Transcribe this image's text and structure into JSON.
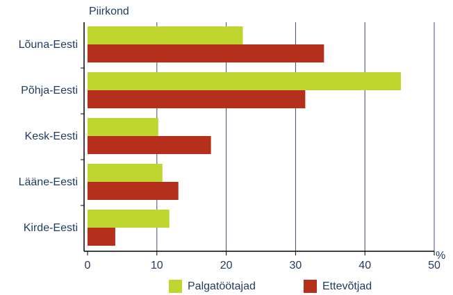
{
  "chart_data": {
    "type": "hbar",
    "y_label": "Piirkond",
    "x_label": "%",
    "categories": [
      "Lõuna-Eesti",
      "Põhja-Eesti",
      "Kesk-Eesti",
      "Lääne-Eesti",
      "Kirde-Eesti"
    ],
    "series": [
      {
        "name": "Palgatöötajad",
        "color": "#bfd630",
        "values": [
          22.4,
          45.2,
          10.2,
          10.8,
          11.8
        ]
      },
      {
        "name": "Ettevõtjad",
        "color": "#b5301c",
        "values": [
          34.1,
          31.4,
          17.8,
          13.1,
          4.0
        ]
      }
    ],
    "xlim": [
      0,
      50
    ],
    "xticks": [
      0,
      10,
      20,
      30,
      40,
      50
    ],
    "grid": true,
    "legend": "bottom"
  }
}
